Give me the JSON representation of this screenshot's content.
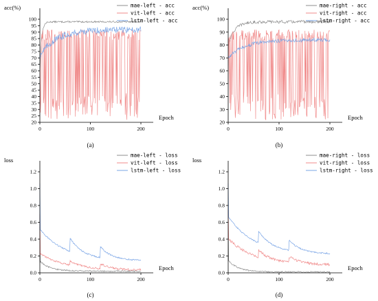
{
  "chart_data": [
    {
      "type": "line",
      "caption": "(a)",
      "ylabel": "acc(%)",
      "xlabel": "Epoch",
      "xlim": [
        0,
        200
      ],
      "ylim": [
        20,
        100
      ],
      "xticks": [
        0,
        100,
        200
      ],
      "yticks": [
        20,
        25,
        30,
        35,
        40,
        45,
        50,
        55,
        60,
        65,
        70,
        75,
        80,
        85,
        90,
        95,
        100
      ],
      "legend_position": "top-right",
      "series": [
        {
          "name": "mae-left - acc",
          "color": "#8c8c8c",
          "shape": "sat",
          "params": {
            "start": 60,
            "end": 98,
            "k": 0.3,
            "noise": 0.6,
            "x_end": 200
          }
        },
        {
          "name": "vit-left - acc",
          "color": "#f08a8a",
          "shape": "osc",
          "params": {
            "start": 60,
            "low": 22,
            "high": 92,
            "prob_low": 0.45,
            "x_end": 200,
            "end_value": 91
          }
        },
        {
          "name": "lstm-left - acc",
          "color": "#7aa5e6",
          "shape": "sat",
          "params": {
            "start": 72,
            "end": 92,
            "k": 0.03,
            "noise": 2.5,
            "x_end": 200
          }
        }
      ]
    },
    {
      "type": "line",
      "caption": "(b)",
      "ylabel": "acc(%)",
      "xlabel": "Epoch",
      "xlim": [
        0,
        200
      ],
      "ylim": [
        20,
        100
      ],
      "xticks": [
        0,
        100,
        200
      ],
      "yticks": [
        20,
        30,
        40,
        50,
        60,
        70,
        80,
        90,
        100
      ],
      "legend_position": "top-right",
      "series": [
        {
          "name": "mae-right - acc",
          "color": "#8c8c8c",
          "shape": "sat",
          "params": {
            "start": 80,
            "end": 98,
            "k": 0.08,
            "noise": 1.2,
            "x_end": 200
          }
        },
        {
          "name": "vit-right - acc",
          "color": "#f08a8a",
          "shape": "osc",
          "params": {
            "start": 50,
            "low": 22,
            "high": 92,
            "prob_low": 0.45,
            "x_end": 200,
            "end_value": 91
          }
        },
        {
          "name": "lstm-right - acc",
          "color": "#7aa5e6",
          "shape": "sat",
          "params": {
            "start": 70,
            "end": 84,
            "k": 0.03,
            "noise": 1.5,
            "x_end": 200
          }
        }
      ]
    },
    {
      "type": "line",
      "caption": "(c)",
      "ylabel": "loss",
      "xlabel": "Epoch",
      "xlim": [
        0,
        200
      ],
      "ylim": [
        0,
        1.2
      ],
      "xticks": [
        0,
        100,
        200
      ],
      "yticks": [
        0.0,
        0.2,
        0.4,
        0.6,
        0.8,
        1.0,
        1.2
      ],
      "legend_position": "top-right",
      "series": [
        {
          "name": "mae-left - loss",
          "color": "#8c8c8c",
          "shape": "decay",
          "params": {
            "start": 0.55,
            "level": 0.02,
            "scale": 0.12,
            "k": 0.05,
            "noise": 0.008,
            "jumps": [],
            "x_end": 200
          }
        },
        {
          "name": "vit-left - loss",
          "color": "#f08a8a",
          "shape": "decay",
          "params": {
            "start": 0.7,
            "level": 0.03,
            "scale": 0.2,
            "k": 0.02,
            "noise": 0.012,
            "jumps": [
              [
                60,
                0.05
              ],
              [
                120,
                0.06
              ]
            ],
            "x_end": 200
          }
        },
        {
          "name": "lstm-left - loss",
          "color": "#7aa5e6",
          "shape": "decay",
          "params": {
            "start": 1.06,
            "level": 0.14,
            "scale": 0.38,
            "k": 0.02,
            "noise": 0.008,
            "jumps": [
              [
                60,
                0.16
              ],
              [
                120,
                0.13
              ]
            ],
            "x_end": 200
          }
        }
      ]
    },
    {
      "type": "line",
      "caption": "(d)",
      "ylabel": "loss",
      "xlabel": "Epoch",
      "xlim": [
        0,
        200
      ],
      "ylim": [
        0,
        1.2
      ],
      "xticks": [
        0,
        100,
        200
      ],
      "yticks": [
        0.0,
        0.2,
        0.4,
        0.6,
        0.8,
        1.0,
        1.2
      ],
      "legend_position": "top-right",
      "series": [
        {
          "name": "mae-right - loss",
          "color": "#8c8c8c",
          "shape": "decay",
          "params": {
            "start": 0.6,
            "level": 0.01,
            "scale": 0.14,
            "k": 0.05,
            "noise": 0.008,
            "jumps": [],
            "x_end": 200
          }
        },
        {
          "name": "vit-right - loss",
          "color": "#f08a8a",
          "shape": "decay",
          "params": {
            "start": 0.75,
            "level": 0.09,
            "scale": 0.32,
            "k": 0.02,
            "noise": 0.015,
            "jumps": [
              [
                60,
                0.08
              ],
              [
                120,
                0.07
              ]
            ],
            "x_end": 200
          }
        },
        {
          "name": "lstm-right - loss",
          "color": "#7aa5e6",
          "shape": "decay",
          "params": {
            "start": 1.06,
            "level": 0.22,
            "scale": 0.45,
            "k": 0.02,
            "noise": 0.008,
            "jumps": [
              [
                60,
                0.14
              ],
              [
                120,
                0.12
              ]
            ],
            "x_end": 200
          }
        }
      ]
    }
  ]
}
